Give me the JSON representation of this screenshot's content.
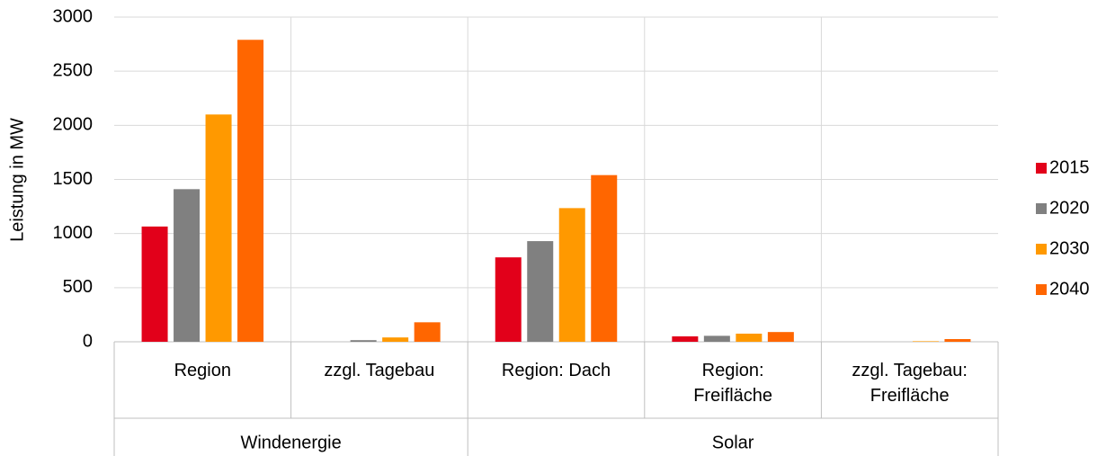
{
  "chart_data": {
    "type": "bar",
    "y_label": "Leistung in MW",
    "groups": [
      {
        "label": "Windenergie",
        "categories": [
          "Region",
          "zzgl. Tagebau"
        ]
      },
      {
        "label": "Solar",
        "categories": [
          "Region: Dach",
          "Region:\nFreifläche",
          "zzgl. Tagebau:\nFreifläche"
        ]
      }
    ],
    "series": [
      {
        "name": "2015",
        "color": "#e2001a",
        "values": [
          1065,
          0,
          780,
          50,
          0
        ]
      },
      {
        "name": "2020",
        "color": "#808080",
        "values": [
          1410,
          15,
          930,
          55,
          0
        ]
      },
      {
        "name": "2030",
        "color": "#ff9900",
        "values": [
          2100,
          40,
          1235,
          75,
          5
        ]
      },
      {
        "name": "2040",
        "color": "#ff6600",
        "values": [
          2790,
          180,
          1540,
          90,
          25
        ]
      }
    ],
    "ylim": [
      0,
      3000
    ],
    "yticks": [
      0,
      500,
      1000,
      1500,
      2000,
      2500,
      3000
    ],
    "grid": true,
    "legend": "right"
  }
}
